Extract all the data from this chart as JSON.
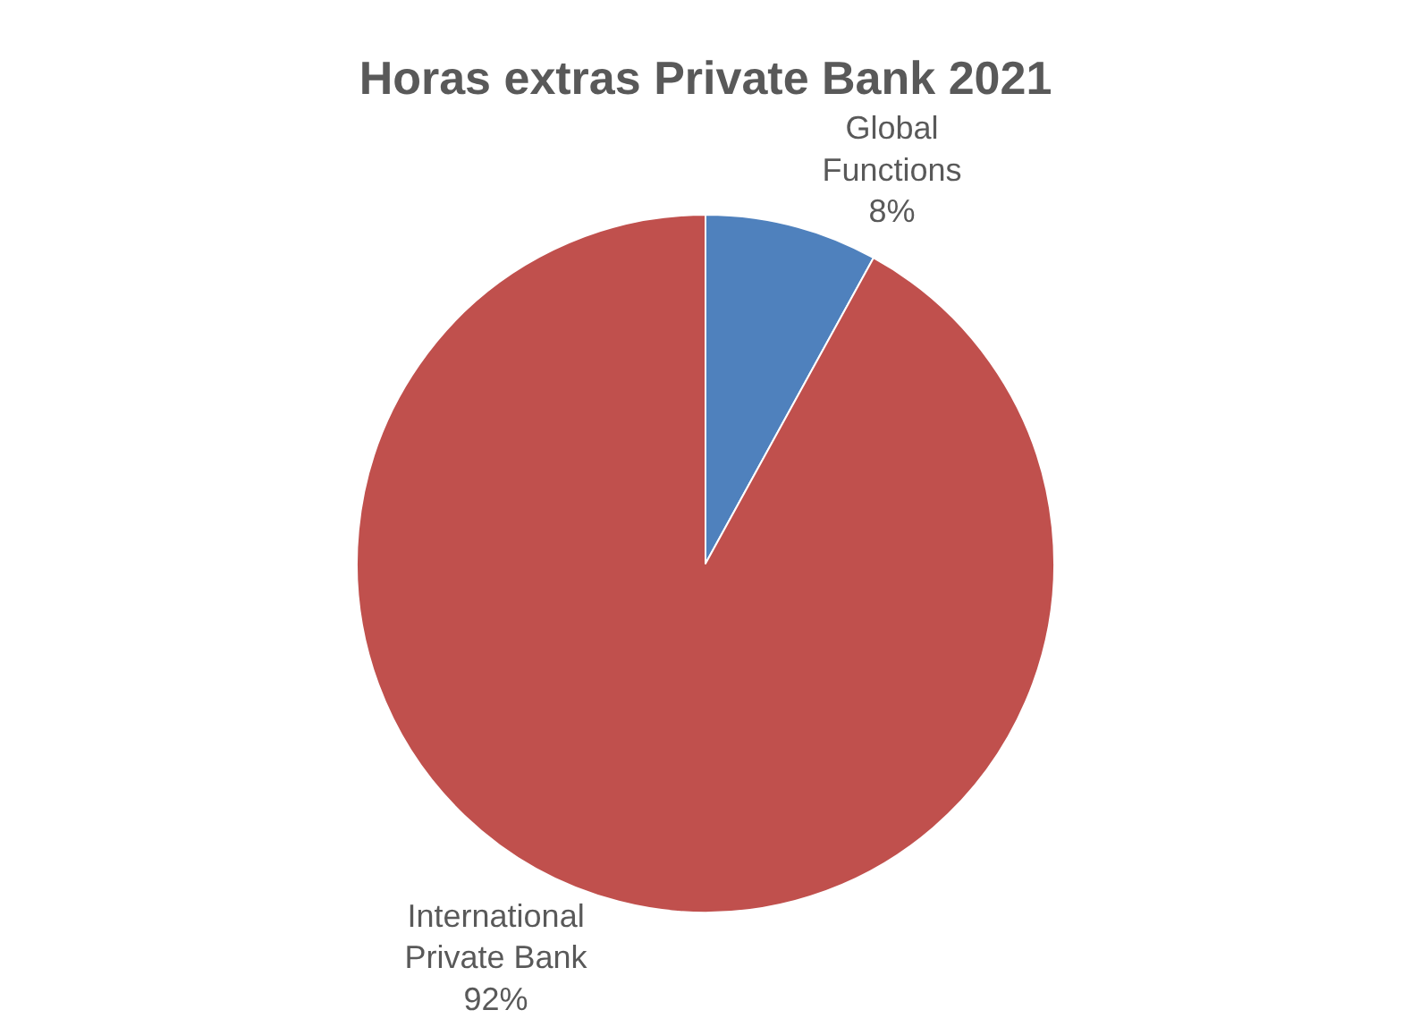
{
  "chart_data": {
    "type": "pie",
    "title": "Horas extras Private Bank 2021",
    "categories": [
      "Global Functions",
      "International Private Bank"
    ],
    "values": [
      8,
      92
    ],
    "value_labels": [
      "8%",
      "92%"
    ],
    "colors": [
      "#4f81bd",
      "#c0504d"
    ],
    "legend": false
  }
}
